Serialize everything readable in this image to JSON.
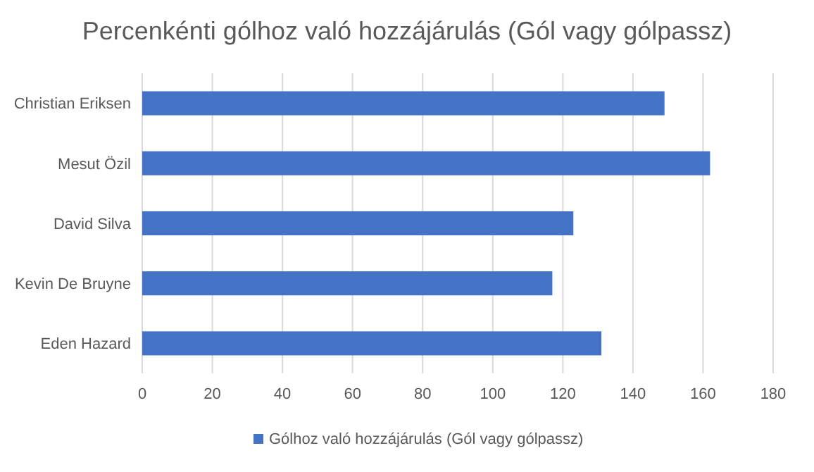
{
  "chart_data": {
    "type": "bar",
    "orientation": "horizontal",
    "title": "Percenkénti gólhoz való hozzájárulás (Gól vagy gólpassz)",
    "categories": [
      "Christian Eriksen",
      "Mesut Özil",
      "David Silva",
      "Kevin De Bruyne",
      "Eden Hazard"
    ],
    "series": [
      {
        "name": "Gólhoz való hozzájárulás (Gól vagy gólpassz)",
        "color": "#4472c4",
        "values": [
          149,
          162,
          123,
          117,
          131
        ]
      }
    ],
    "xlim": [
      0,
      180
    ],
    "xticks": [
      0,
      20,
      40,
      60,
      80,
      100,
      120,
      140,
      160,
      180
    ],
    "grid": "x",
    "legend": "bottom"
  }
}
